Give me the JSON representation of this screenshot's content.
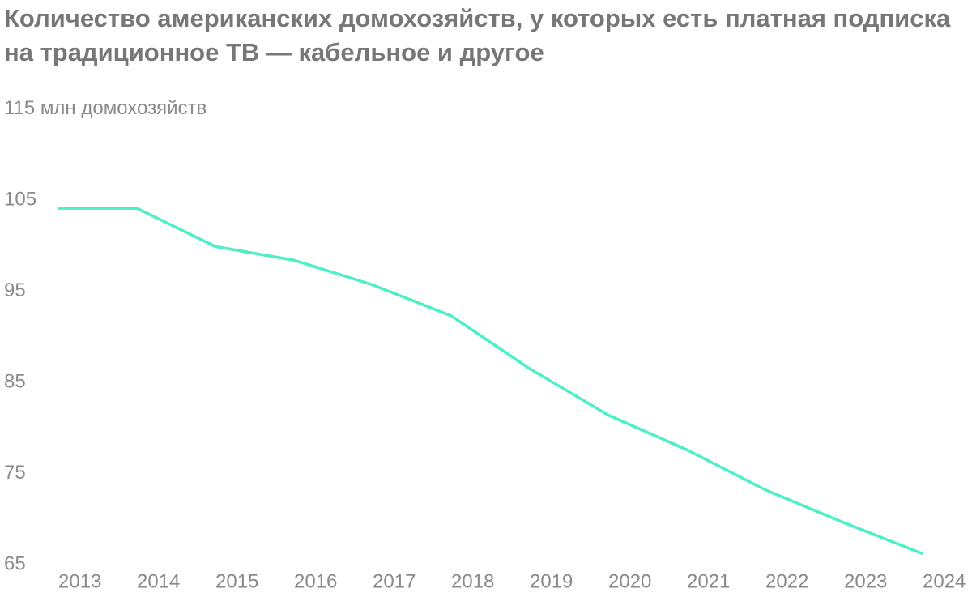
{
  "chart_data": {
    "type": "line",
    "title": "Количество американских домохозяйств, у которых есть платная подписка на традиционное ТВ — кабельное и другое",
    "categories": [
      "2013",
      "2014",
      "2015",
      "2016",
      "2017",
      "2018",
      "2019",
      "2020",
      "2021",
      "2022",
      "2023",
      "2024"
    ],
    "values": [
      104.1,
      104.1,
      99.9,
      98.4,
      95.7,
      92.3,
      86.5,
      81.4,
      77.6,
      73.2,
      69.6,
      66.2
    ],
    "color": "#4cefc8",
    "ylim": [
      65,
      115
    ],
    "yticks": [
      65,
      75,
      85,
      95,
      105,
      {
        "value": 115,
        "label": "115 млн домохозяйств"
      }
    ],
    "grid": false
  }
}
